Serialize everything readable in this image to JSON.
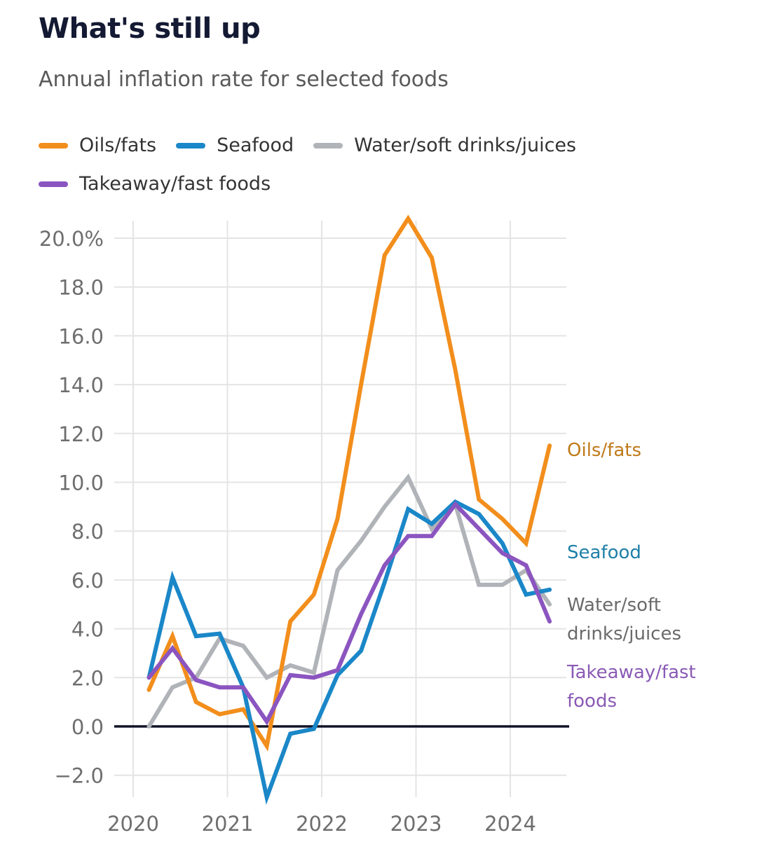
{
  "header": {
    "title": "What's still up",
    "subtitle": "Annual inflation rate for selected foods"
  },
  "legend": [
    {
      "label": "Oils/fats",
      "color": "#f28e1c"
    },
    {
      "label": "Seafood",
      "color": "#1a87c8"
    },
    {
      "label": "Water/soft drinks/juices",
      "color": "#b0b3b8"
    },
    {
      "label": "Takeaway/fast foods",
      "color": "#8b55c0"
    }
  ],
  "chart_data": {
    "type": "line",
    "title": "What's still up",
    "subtitle": "Annual inflation rate for selected foods",
    "xlabel": "",
    "ylabel": "",
    "x": [
      2020.167,
      2020.417,
      2020.667,
      2020.917,
      2021.167,
      2021.417,
      2021.667,
      2021.917,
      2022.167,
      2022.417,
      2022.667,
      2022.917,
      2023.167,
      2023.417,
      2023.667,
      2023.917,
      2024.167,
      2024.417
    ],
    "xlim": [
      2019.9,
      2024.7
    ],
    "ylim": [
      -3.0,
      21.0
    ],
    "x_ticks": [
      2020,
      2021,
      2022,
      2023,
      2024
    ],
    "x_tick_labels": [
      "2020",
      "2021",
      "2022",
      "2023",
      "2024"
    ],
    "y_ticks": [
      -2,
      0,
      2,
      4,
      6,
      8,
      10,
      12,
      14,
      16,
      18,
      20
    ],
    "y_tick_labels": [
      "−2.0",
      "0.0",
      "2.0",
      "4.0",
      "6.0",
      "8.0",
      "10.0",
      "12.0",
      "14.0",
      "16.0",
      "18.0",
      "20.0%"
    ],
    "grid": true,
    "zero_line": true,
    "legend_position": "top",
    "series": [
      {
        "name": "Oils/fats",
        "end_label": "Oils/fats",
        "color": "#f28e1c",
        "label_color": "#c07a1a",
        "values": [
          1.5,
          3.7,
          1.0,
          0.5,
          0.7,
          -0.8,
          4.3,
          5.4,
          8.5,
          14.0,
          19.3,
          20.8,
          19.2,
          14.6,
          9.3,
          8.5,
          7.5,
          11.5
        ]
      },
      {
        "name": "Seafood",
        "end_label": "Seafood",
        "color": "#1a87c8",
        "label_color": "#1f7fa8",
        "values": [
          2.0,
          6.1,
          3.7,
          3.8,
          1.6,
          -2.9,
          -0.3,
          -0.1,
          2.1,
          3.1,
          5.9,
          8.9,
          8.3,
          9.2,
          8.7,
          7.5,
          5.4,
          5.6
        ]
      },
      {
        "name": "Water/soft drinks/juices",
        "end_label": "Water/soft drinks/juices",
        "end_label_lines": [
          "Water/soft",
          "drinks/juices"
        ],
        "color": "#b0b3b8",
        "label_color": "#6a6a6a",
        "values": [
          0.0,
          1.6,
          2.0,
          3.6,
          3.3,
          2.0,
          2.5,
          2.2,
          6.4,
          7.6,
          9.0,
          10.2,
          8.1,
          9.1,
          5.8,
          5.8,
          6.4,
          5.0
        ]
      },
      {
        "name": "Takeaway/fast foods",
        "end_label": "Takeaway/fast foods",
        "end_label_lines": [
          "Takeaway/fast",
          "foods"
        ],
        "color": "#8b55c0",
        "label_color": "#8a5ab5",
        "values": [
          2.0,
          3.2,
          1.9,
          1.6,
          1.6,
          0.2,
          2.1,
          2.0,
          2.3,
          4.6,
          6.6,
          7.8,
          7.8,
          9.1,
          8.1,
          7.1,
          6.6,
          4.3
        ]
      }
    ]
  }
}
